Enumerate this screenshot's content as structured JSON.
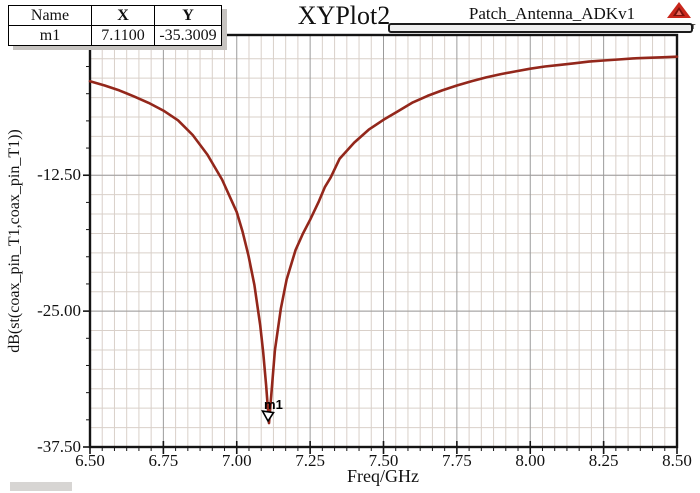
{
  "header": {
    "title": "XYPlot2",
    "subtitle": "Patch_Antenna_ADKv1",
    "brand": "ANSOFT",
    "brand_color": "#c9271c"
  },
  "marker_table": {
    "columns": [
      "Name",
      "X",
      "Y"
    ],
    "rows": [
      [
        "m1",
        "7.1100",
        "-35.3009"
      ]
    ]
  },
  "chart_data": {
    "type": "line",
    "title": "XYPlot2",
    "xlabel": "Freq/GHz",
    "ylabel": "dB(st(coax_pin_T1,coax_pin_T1))",
    "xlim": [
      6.5,
      8.5
    ],
    "ylim": [
      -37.5,
      0.4
    ],
    "x_ticks": [
      6.5,
      6.75,
      7.0,
      7.25,
      7.5,
      7.75,
      8.0,
      8.25,
      8.5
    ],
    "x_tick_labels": [
      "6.50",
      "6.75",
      "7.00",
      "7.25",
      "7.50",
      "7.75",
      "8.00",
      "8.25",
      "8.50"
    ],
    "y_ticks": [
      -12.5,
      -25.0,
      -37.5
    ],
    "y_tick_labels": [
      "-12.50",
      "-25.00",
      "-37.50"
    ],
    "grid": {
      "major_color": "#9b9b9b",
      "minor_color": "#d9d0c9",
      "x_minor_divisions": 6,
      "y_minor_step": 1.7857,
      "axis_color": "#141414"
    },
    "legend_position": "none",
    "series": [
      {
        "name": "dB(st(coax_pin_T1,coax_pin_T1))",
        "color": "#93271b",
        "x": [
          6.5,
          6.55,
          6.6,
          6.65,
          6.7,
          6.75,
          6.8,
          6.85,
          6.9,
          6.95,
          7.0,
          7.02,
          7.04,
          7.06,
          7.08,
          7.09,
          7.1,
          7.11,
          7.12,
          7.13,
          7.15,
          7.17,
          7.2,
          7.225,
          7.25,
          7.28,
          7.3,
          7.32,
          7.35,
          7.4,
          7.45,
          7.5,
          7.55,
          7.6,
          7.65,
          7.7,
          7.75,
          7.8,
          7.85,
          7.9,
          7.95,
          8.0,
          8.05,
          8.1,
          8.15,
          8.2,
          8.25,
          8.3,
          8.35,
          8.4,
          8.45,
          8.5
        ],
        "y": [
          -3.85,
          -4.25,
          -4.7,
          -5.25,
          -5.85,
          -6.55,
          -7.45,
          -8.8,
          -10.6,
          -12.9,
          -15.9,
          -17.7,
          -19.9,
          -22.6,
          -26.3,
          -28.8,
          -31.8,
          -35.3,
          -31.9,
          -28.6,
          -24.8,
          -22.1,
          -19.4,
          -17.9,
          -16.6,
          -14.9,
          -13.6,
          -12.7,
          -11.0,
          -9.5,
          -8.3,
          -7.4,
          -6.6,
          -5.8,
          -5.2,
          -4.7,
          -4.25,
          -3.85,
          -3.5,
          -3.2,
          -2.95,
          -2.7,
          -2.5,
          -2.35,
          -2.2,
          -2.05,
          -1.95,
          -1.85,
          -1.75,
          -1.7,
          -1.65,
          -1.6
        ]
      }
    ],
    "markers": [
      {
        "name": "m1",
        "x": 7.11,
        "y": -35.3009
      }
    ]
  }
}
